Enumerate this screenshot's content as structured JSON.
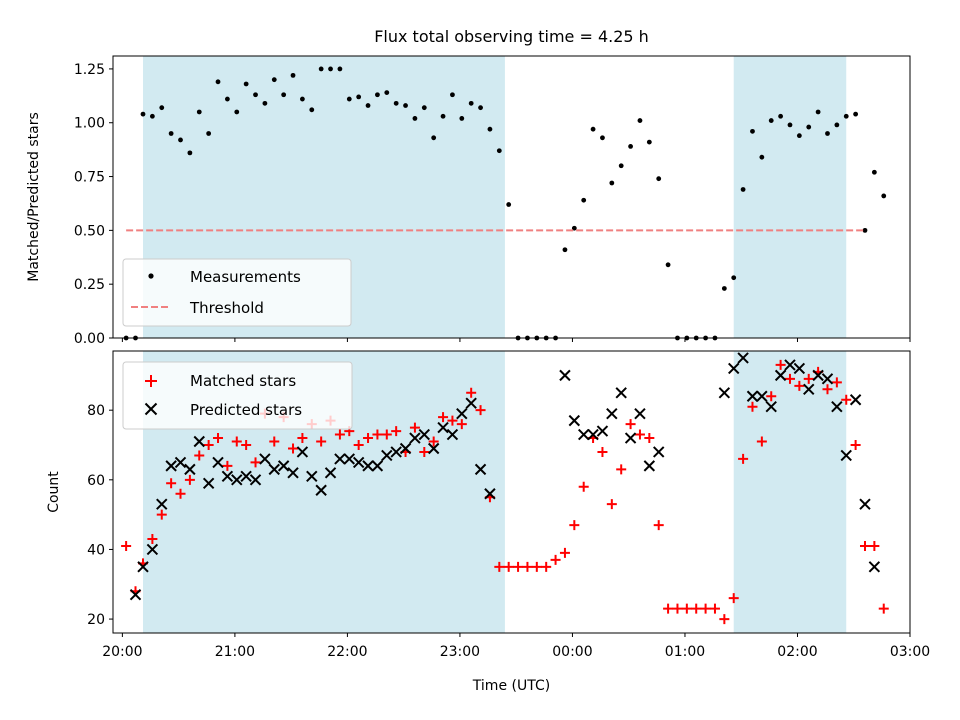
{
  "chart_data": [
    {
      "type": "scatter",
      "title": "Flux total observing time = 4.25 h",
      "ylabel": "Matched/Predicted stars",
      "xlabel": "",
      "ylim": [
        0,
        1.31
      ],
      "yticks": [
        "0.00",
        "0.25",
        "0.50",
        "0.75",
        "1.00",
        "1.25"
      ],
      "ytick_values": [
        0,
        0.25,
        0.5,
        0.75,
        1.0,
        1.25
      ],
      "grid": false,
      "legend_position": "lower-left",
      "shaded_intervals": [
        [
          "20:11",
          "23:24"
        ],
        [
          "01:26",
          "02:26"
        ]
      ],
      "series": [
        {
          "name": "Measurements",
          "marker": "dot",
          "color": "#000000",
          "points": [
            [
              "20:02",
              0.0
            ],
            [
              "20:07",
              0.0
            ],
            [
              "20:11",
              1.04
            ],
            [
              "20:16",
              1.03
            ],
            [
              "20:21",
              1.07
            ],
            [
              "20:26",
              0.95
            ],
            [
              "20:31",
              0.92
            ],
            [
              "20:36",
              0.86
            ],
            [
              "20:41",
              1.05
            ],
            [
              "20:46",
              0.95
            ],
            [
              "20:51",
              1.19
            ],
            [
              "20:56",
              1.11
            ],
            [
              "21:01",
              1.05
            ],
            [
              "21:06",
              1.18
            ],
            [
              "21:11",
              1.13
            ],
            [
              "21:16",
              1.09
            ],
            [
              "21:21",
              1.2
            ],
            [
              "21:26",
              1.13
            ],
            [
              "21:31",
              1.22
            ],
            [
              "21:36",
              1.11
            ],
            [
              "21:41",
              1.06
            ],
            [
              "21:46",
              1.25
            ],
            [
              "21:51",
              1.25
            ],
            [
              "21:56",
              1.25
            ],
            [
              "22:01",
              1.11
            ],
            [
              "22:06",
              1.12
            ],
            [
              "22:11",
              1.08
            ],
            [
              "22:16",
              1.13
            ],
            [
              "22:21",
              1.14
            ],
            [
              "22:26",
              1.09
            ],
            [
              "22:31",
              1.08
            ],
            [
              "22:36",
              1.02
            ],
            [
              "22:41",
              1.07
            ],
            [
              "22:46",
              0.93
            ],
            [
              "22:51",
              1.03
            ],
            [
              "22:56",
              1.13
            ],
            [
              "23:01",
              1.02
            ],
            [
              "23:06",
              1.09
            ],
            [
              "23:11",
              1.07
            ],
            [
              "23:16",
              0.97
            ],
            [
              "23:21",
              0.87
            ],
            [
              "23:26",
              0.62
            ],
            [
              "23:31",
              0.0
            ],
            [
              "23:36",
              0.0
            ],
            [
              "23:41",
              0.0
            ],
            [
              "23:46",
              0.0
            ],
            [
              "23:51",
              0.0
            ],
            [
              "23:56",
              0.41
            ],
            [
              "00:01",
              0.51
            ],
            [
              "00:06",
              0.64
            ],
            [
              "00:11",
              0.97
            ],
            [
              "00:16",
              0.93
            ],
            [
              "00:21",
              0.72
            ],
            [
              "00:26",
              0.8
            ],
            [
              "00:31",
              0.89
            ],
            [
              "00:36",
              1.01
            ],
            [
              "00:41",
              0.91
            ],
            [
              "00:46",
              0.74
            ],
            [
              "00:51",
              0.34
            ],
            [
              "00:56",
              0.0
            ],
            [
              "01:01",
              0.0
            ],
            [
              "01:06",
              0.0
            ],
            [
              "01:11",
              0.0
            ],
            [
              "01:16",
              0.0
            ],
            [
              "01:21",
              0.23
            ],
            [
              "01:26",
              0.28
            ],
            [
              "01:31",
              0.69
            ],
            [
              "01:36",
              0.96
            ],
            [
              "01:41",
              0.84
            ],
            [
              "01:46",
              1.01
            ],
            [
              "01:51",
              1.03
            ],
            [
              "01:56",
              0.99
            ],
            [
              "02:01",
              0.94
            ],
            [
              "02:06",
              0.98
            ],
            [
              "02:11",
              1.05
            ],
            [
              "02:16",
              0.95
            ],
            [
              "02:21",
              0.99
            ],
            [
              "02:26",
              1.03
            ],
            [
              "02:31",
              1.04
            ],
            [
              "02:36",
              0.5
            ],
            [
              "02:41",
              0.77
            ],
            [
              "02:46",
              0.66
            ]
          ]
        },
        {
          "name": "Threshold",
          "marker": "dashed-line",
          "color": "#f08080",
          "points": [
            [
              "20:02",
              0.5
            ],
            [
              "02:36",
              0.5
            ]
          ]
        }
      ]
    },
    {
      "type": "scatter",
      "title": "",
      "ylabel": "Count",
      "xlabel": "Time (UTC)",
      "ylim": [
        16,
        97
      ],
      "yticks": [
        "20",
        "40",
        "60",
        "80"
      ],
      "ytick_values": [
        20,
        40,
        60,
        80
      ],
      "xlim": [
        "19:55",
        "03:00"
      ],
      "xticks": [
        "20:00",
        "21:00",
        "22:00",
        "23:00",
        "00:00",
        "01:00",
        "02:00",
        "03:00"
      ],
      "grid": false,
      "legend_position": "top-left",
      "series": [
        {
          "name": "Matched stars",
          "marker": "plus",
          "color": "#ff0000",
          "points": [
            [
              "20:02",
              41
            ],
            [
              "20:07",
              28
            ],
            [
              "20:11",
              36
            ],
            [
              "20:16",
              43
            ],
            [
              "20:21",
              50
            ],
            [
              "20:26",
              59
            ],
            [
              "20:31",
              56
            ],
            [
              "20:36",
              60
            ],
            [
              "20:41",
              67
            ],
            [
              "20:46",
              70
            ],
            [
              "20:51",
              72
            ],
            [
              "20:56",
              64
            ],
            [
              "21:01",
              71
            ],
            [
              "21:06",
              70
            ],
            [
              "21:11",
              65
            ],
            [
              "21:16",
              79
            ],
            [
              "21:21",
              71
            ],
            [
              "21:26",
              78
            ],
            [
              "21:31",
              69
            ],
            [
              "21:36",
              72
            ],
            [
              "21:41",
              76
            ],
            [
              "21:46",
              71
            ],
            [
              "21:51",
              77
            ],
            [
              "21:56",
              73
            ],
            [
              "22:01",
              74
            ],
            [
              "22:06",
              70
            ],
            [
              "22:11",
              72
            ],
            [
              "22:16",
              73
            ],
            [
              "22:21",
              73
            ],
            [
              "22:26",
              74
            ],
            [
              "22:31",
              68
            ],
            [
              "22:36",
              75
            ],
            [
              "22:41",
              68
            ],
            [
              "22:46",
              71
            ],
            [
              "22:51",
              78
            ],
            [
              "22:56",
              77
            ],
            [
              "23:01",
              76
            ],
            [
              "23:06",
              85
            ],
            [
              "23:11",
              80
            ],
            [
              "23:16",
              55
            ],
            [
              "23:21",
              35
            ],
            [
              "23:26",
              35
            ],
            [
              "23:31",
              35
            ],
            [
              "23:36",
              35
            ],
            [
              "23:41",
              35
            ],
            [
              "23:46",
              35
            ],
            [
              "23:51",
              37
            ],
            [
              "23:56",
              39
            ],
            [
              "00:01",
              47
            ],
            [
              "00:06",
              58
            ],
            [
              "00:11",
              72
            ],
            [
              "00:16",
              68
            ],
            [
              "00:21",
              53
            ],
            [
              "00:26",
              63
            ],
            [
              "00:31",
              76
            ],
            [
              "00:36",
              73
            ],
            [
              "00:41",
              72
            ],
            [
              "00:46",
              47
            ],
            [
              "00:51",
              23
            ],
            [
              "00:56",
              23
            ],
            [
              "01:01",
              23
            ],
            [
              "01:06",
              23
            ],
            [
              "01:11",
              23
            ],
            [
              "01:16",
              23
            ],
            [
              "01:21",
              20
            ],
            [
              "01:26",
              26
            ],
            [
              "01:31",
              66
            ],
            [
              "01:36",
              81
            ],
            [
              "01:41",
              71
            ],
            [
              "01:46",
              84
            ],
            [
              "01:51",
              93
            ],
            [
              "01:56",
              89
            ],
            [
              "02:01",
              87
            ],
            [
              "02:06",
              89
            ],
            [
              "02:11",
              91
            ],
            [
              "02:16",
              86
            ],
            [
              "02:21",
              88
            ],
            [
              "02:26",
              83
            ],
            [
              "02:31",
              70
            ],
            [
              "02:36",
              41
            ],
            [
              "02:41",
              41
            ],
            [
              "02:46",
              23
            ]
          ]
        },
        {
          "name": "Predicted stars",
          "marker": "x",
          "color": "#000000",
          "points": [
            [
              "20:07",
              27
            ],
            [
              "20:11",
              35
            ],
            [
              "20:16",
              40
            ],
            [
              "20:21",
              53
            ],
            [
              "20:26",
              64
            ],
            [
              "20:31",
              65
            ],
            [
              "20:36",
              63
            ],
            [
              "20:41",
              71
            ],
            [
              "20:46",
              59
            ],
            [
              "20:51",
              65
            ],
            [
              "20:56",
              61
            ],
            [
              "21:01",
              60
            ],
            [
              "21:06",
              61
            ],
            [
              "21:11",
              60
            ],
            [
              "21:16",
              66
            ],
            [
              "21:21",
              63
            ],
            [
              "21:26",
              64
            ],
            [
              "21:31",
              62
            ],
            [
              "21:36",
              68
            ],
            [
              "21:41",
              61
            ],
            [
              "21:46",
              57
            ],
            [
              "21:51",
              62
            ],
            [
              "21:56",
              66
            ],
            [
              "22:01",
              66
            ],
            [
              "22:06",
              65
            ],
            [
              "22:11",
              64
            ],
            [
              "22:16",
              64
            ],
            [
              "22:21",
              67
            ],
            [
              "22:26",
              68
            ],
            [
              "22:31",
              69
            ],
            [
              "22:36",
              72
            ],
            [
              "22:41",
              73
            ],
            [
              "22:46",
              69
            ],
            [
              "22:51",
              75
            ],
            [
              "22:56",
              73
            ],
            [
              "23:01",
              79
            ],
            [
              "23:06",
              82
            ],
            [
              "23:11",
              63
            ],
            [
              "23:16",
              56
            ],
            [
              "23:56",
              90
            ],
            [
              "00:01",
              77
            ],
            [
              "00:06",
              73
            ],
            [
              "00:11",
              73
            ],
            [
              "00:16",
              74
            ],
            [
              "00:21",
              79
            ],
            [
              "00:26",
              85
            ],
            [
              "00:31",
              72
            ],
            [
              "00:36",
              79
            ],
            [
              "00:41",
              64
            ],
            [
              "00:46",
              68
            ],
            [
              "01:21",
              85
            ],
            [
              "01:26",
              92
            ],
            [
              "01:31",
              95
            ],
            [
              "01:36",
              84
            ],
            [
              "01:41",
              84
            ],
            [
              "01:46",
              81
            ],
            [
              "01:51",
              90
            ],
            [
              "01:56",
              93
            ],
            [
              "02:01",
              92
            ],
            [
              "02:06",
              86
            ],
            [
              "02:11",
              90
            ],
            [
              "02:16",
              89
            ],
            [
              "02:21",
              81
            ],
            [
              "02:26",
              67
            ],
            [
              "02:31",
              83
            ],
            [
              "02:36",
              53
            ],
            [
              "02:41",
              35
            ]
          ]
        }
      ]
    }
  ],
  "colors": {
    "shading": "#add8e6",
    "measurement": "#000000",
    "threshold": "#f08080",
    "matched": "#ff0000",
    "predicted": "#000000"
  }
}
